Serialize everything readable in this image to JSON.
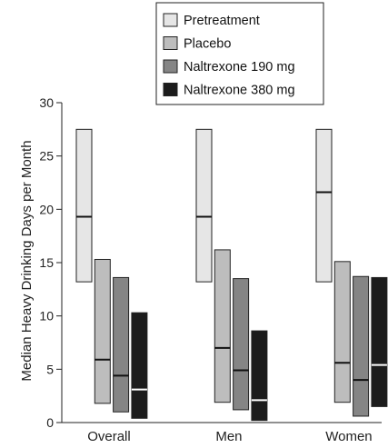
{
  "chart_data": {
    "type": "box",
    "title": "",
    "xlabel": "",
    "ylabel": "Median Heavy Drinking Days per Month",
    "ylim": [
      0,
      30
    ],
    "yticks": [
      0,
      5,
      10,
      15,
      20,
      25,
      30
    ],
    "categories": [
      "Overall",
      "Men",
      "Women"
    ],
    "legend_position": "top-center",
    "series": [
      {
        "name": "Pretreatment",
        "color": "#e6e6e6",
        "median_line_color": "#111111",
        "boxes": [
          {
            "low": 13.2,
            "median": 19.3,
            "high": 27.5
          },
          {
            "low": 13.2,
            "median": 19.3,
            "high": 27.5
          },
          {
            "low": 13.2,
            "median": 21.6,
            "high": 27.5
          }
        ]
      },
      {
        "name": "Placebo",
        "color": "#bdbdbd",
        "median_line_color": "#111111",
        "boxes": [
          {
            "low": 1.8,
            "median": 5.9,
            "high": 15.3
          },
          {
            "low": 1.9,
            "median": 7.0,
            "high": 16.2
          },
          {
            "low": 1.9,
            "median": 5.6,
            "high": 15.1
          }
        ]
      },
      {
        "name": "Naltrexone 190 mg",
        "color": "#858585",
        "median_line_color": "#111111",
        "boxes": [
          {
            "low": 1.0,
            "median": 4.4,
            "high": 13.6
          },
          {
            "low": 1.2,
            "median": 4.9,
            "high": 13.5
          },
          {
            "low": 0.6,
            "median": 4.0,
            "high": 13.7
          }
        ]
      },
      {
        "name": "Naltrexone 380 mg",
        "color": "#1c1c1c",
        "median_line_color": "#ffffff",
        "boxes": [
          {
            "low": 0.4,
            "median": 3.1,
            "high": 10.3
          },
          {
            "low": 0.2,
            "median": 2.1,
            "high": 8.6
          },
          {
            "low": 1.5,
            "median": 5.4,
            "high": 13.6
          }
        ]
      }
    ]
  }
}
